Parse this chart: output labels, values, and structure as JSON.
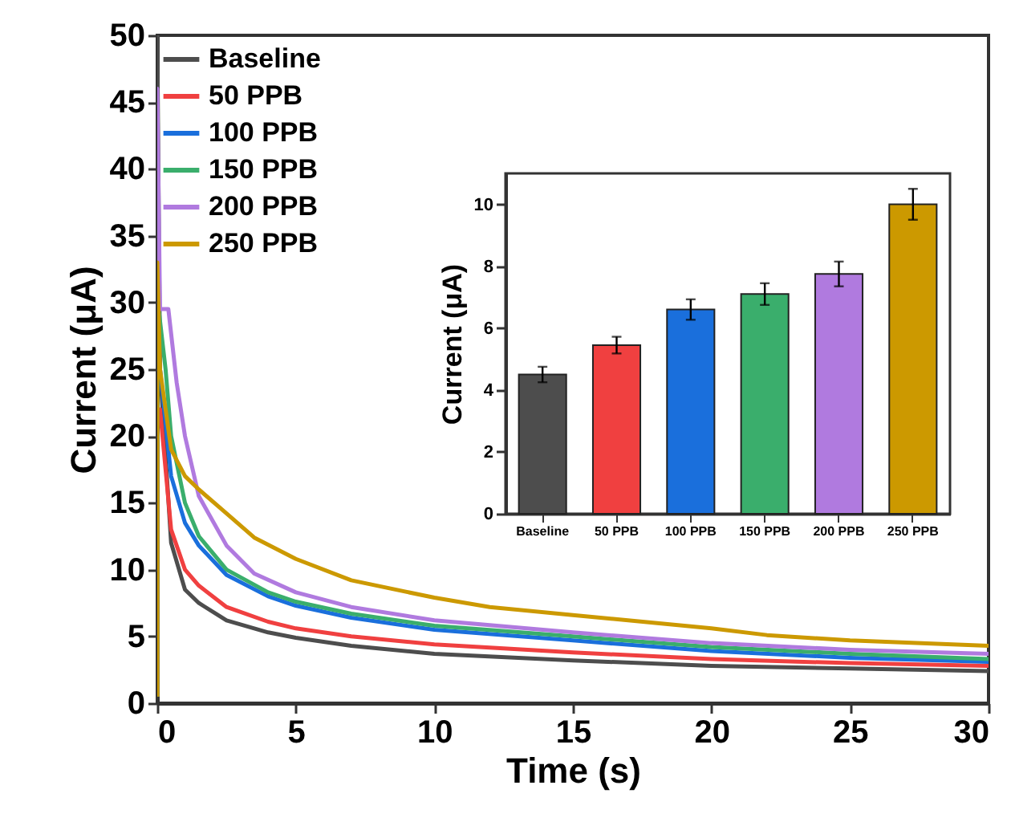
{
  "chart_data": [
    {
      "type": "line",
      "xlabel": "Time (s)",
      "ylabel": "Current (μA)",
      "xlim": [
        0,
        30
      ],
      "xticks": [
        0,
        5,
        10,
        15,
        20,
        25,
        30
      ],
      "ylim": [
        0,
        50
      ],
      "yticks": [
        0,
        5,
        10,
        15,
        20,
        25,
        30,
        35,
        40,
        45,
        50
      ],
      "grid": false,
      "legend": "top left",
      "line_style": "solid",
      "series": [
        {
          "name": "Baseline",
          "color": "#4d4d4d",
          "x": [
            0,
            0,
            0.1,
            0.5,
            1,
            1.5,
            2.5,
            4,
            5,
            7,
            10,
            15,
            20,
            25,
            30
          ],
          "values": [
            0.5,
            50,
            25,
            12,
            8.5,
            7.5,
            6.2,
            5.3,
            4.9,
            4.3,
            3.7,
            3.2,
            2.8,
            2.6,
            2.4
          ]
        },
        {
          "name": "50 PPB",
          "color": "#f04040",
          "x": [
            0,
            0,
            0.1,
            0.5,
            1,
            1.5,
            2.5,
            4,
            5,
            7,
            10,
            15,
            20,
            25,
            30
          ],
          "values": [
            0.5,
            22,
            22,
            13,
            10,
            8.8,
            7.2,
            6.1,
            5.6,
            5,
            4.4,
            3.8,
            3.3,
            3,
            2.8
          ]
        },
        {
          "name": "100 PPB",
          "color": "#1a6fdc",
          "x": [
            0,
            0.1,
            0.5,
            1,
            1.5,
            2.5,
            4,
            5,
            7,
            10,
            15,
            20,
            25,
            30
          ],
          "values": [
            25,
            25,
            17,
            13.5,
            11.8,
            9.6,
            8,
            7.3,
            6.4,
            5.5,
            4.7,
            3.9,
            3.4,
            3.1
          ]
        },
        {
          "name": "150 PPB",
          "color": "#3aae6c",
          "x": [
            0,
            0,
            0.05,
            0.3,
            0.5,
            1,
            1.5,
            2.5,
            4,
            5,
            7,
            10,
            15,
            20,
            25,
            30
          ],
          "values": [
            0.5,
            29.5,
            29.5,
            25,
            20,
            15,
            12.5,
            10,
            8.3,
            7.6,
            6.7,
            5.8,
            5,
            4.2,
            3.7,
            3.3
          ]
        },
        {
          "name": "200 PPB",
          "color": "#b07adf",
          "x": [
            0,
            0,
            0.1,
            0.4,
            0.7,
            1,
            1.5,
            2.5,
            3.5,
            5,
            7,
            10,
            15,
            20,
            25,
            30
          ],
          "values": [
            33,
            46,
            29.5,
            29.5,
            24,
            20,
            15.5,
            11.8,
            9.7,
            8.3,
            7.2,
            6.2,
            5.3,
            4.5,
            4,
            3.7
          ]
        },
        {
          "name": "250 PPB",
          "color": "#cc9900",
          "x": [
            0,
            0,
            0.1,
            0.5,
            1,
            1.5,
            2.5,
            3.5,
            5,
            7,
            10,
            12,
            15,
            20,
            22,
            25,
            30
          ],
          "values": [
            0.5,
            33,
            25,
            19,
            17,
            16,
            14.2,
            12.4,
            10.8,
            9.2,
            7.9,
            7.2,
            6.6,
            5.6,
            5.1,
            4.7,
            4.3
          ]
        }
      ]
    },
    {
      "type": "bar",
      "ylabel": "Current (μA)",
      "categories": [
        "Baseline",
        "50 PPB",
        "100 PPB",
        "150 PPB",
        "200 PPB",
        "250 PPB"
      ],
      "values": [
        4.5,
        5.45,
        6.6,
        7.1,
        7.75,
        10
      ],
      "errors": [
        0.25,
        0.27,
        0.33,
        0.35,
        0.4,
        0.5
      ],
      "colors": [
        "#4d4d4d",
        "#f04040",
        "#1a6fdc",
        "#3aae6c",
        "#b07adf",
        "#cc9900"
      ],
      "ylim": [
        0,
        11
      ],
      "yticks": [
        0,
        2,
        4,
        6,
        8,
        10
      ],
      "grid": false
    }
  ]
}
